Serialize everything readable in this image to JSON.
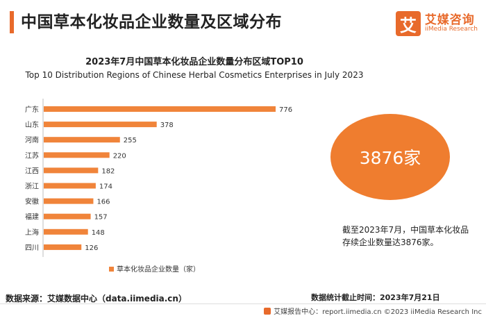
{
  "page_title": "中国草本化妆品企业数量及区域分布",
  "logo": {
    "icon_char": "艾",
    "cn": "艾媒咨询",
    "en": "iiMedia Research"
  },
  "chart_data": {
    "type": "bar",
    "orientation": "horizontal",
    "title": "2023年7月中国草本化妆品企业数量分布区域TOP10",
    "subtitle": "Top 10 Distribution Regions of Chinese Herbal Cosmetics Enterprises in July 2023",
    "categories": [
      "广东",
      "山东",
      "河南",
      "江苏",
      "江西",
      "浙江",
      "安徽",
      "福建",
      "上海",
      "四川"
    ],
    "series": [
      {
        "name": "草本化妆品企业数量（家）",
        "values": [
          776,
          378,
          255,
          220,
          182,
          174,
          166,
          157,
          148,
          126
        ]
      }
    ],
    "xlim": [
      0,
      800
    ],
    "grid": false,
    "legend": "bottom",
    "color": "#f0843a"
  },
  "summary": {
    "total": "3876家",
    "note": "截至2023年7月，中国草本化妆品存续企业数量达3876家。"
  },
  "source": "数据来源：艾媒数据中心（data.iimedia.cn）",
  "stat_date": "数据统计截止时间：2023年7月21日",
  "footer": "艾媒报告中心：report.iimedia.cn  ©2023  iiMedia Research  Inc"
}
